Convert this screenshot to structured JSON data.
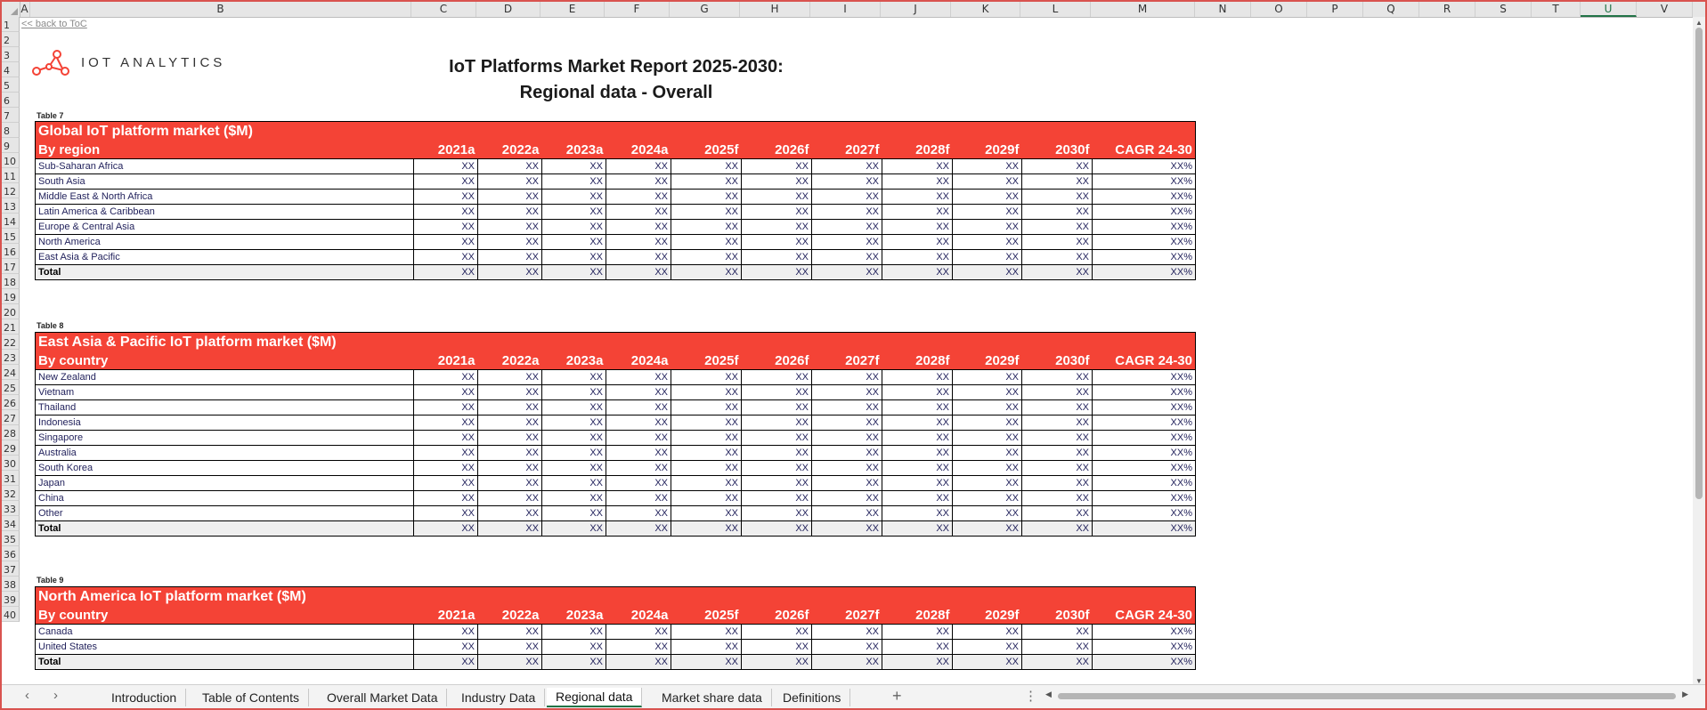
{
  "columns": [
    "A",
    "B",
    "C",
    "D",
    "E",
    "F",
    "G",
    "H",
    "I",
    "J",
    "K",
    "L",
    "M",
    "N",
    "O",
    "P",
    "Q",
    "R",
    "S",
    "T",
    "U",
    "V"
  ],
  "rows": [
    "1",
    "2",
    "3",
    "4",
    "5",
    "6",
    "7",
    "8",
    "9",
    "10",
    "11",
    "12",
    "13",
    "14",
    "15",
    "16",
    "17",
    "18",
    "19",
    "20",
    "21",
    "22",
    "23",
    "24",
    "25",
    "26",
    "27",
    "28",
    "29",
    "30",
    "31",
    "32",
    "33",
    "34",
    "35",
    "36",
    "37",
    "38",
    "39",
    "40"
  ],
  "back_link": "<< back to ToC",
  "logo_text": "IOT ANALYTICS",
  "title_line1": "IoT Platforms Market Report 2025-2030:",
  "title_line2": "Regional data - Overall",
  "year_headers": [
    "2021a",
    "2022a",
    "2023a",
    "2024a",
    "2025f",
    "2026f",
    "2027f",
    "2028f",
    "2029f",
    "2030f",
    "CAGR 24-30"
  ],
  "placeholder": "XX",
  "placeholder_pct": "XX%",
  "tables": [
    {
      "label": "Table 7",
      "title": "Global IoT platform market ($M)",
      "subtitle": "By region",
      "rows": [
        "Sub-Saharan Africa",
        "South Asia",
        "Middle East & North Africa",
        "Latin America & Caribbean",
        "Europe & Central Asia",
        "North America",
        "East Asia & Pacific",
        "Total"
      ]
    },
    {
      "label": "Table 8",
      "title": "East Asia & Pacific IoT platform market ($M)",
      "subtitle": "By country",
      "rows": [
        "New Zealand",
        "Vietnam",
        "Thailand",
        "Indonesia",
        "Singapore",
        "Australia",
        "South Korea",
        "Japan",
        "China",
        "Other",
        "Total"
      ]
    },
    {
      "label": "Table 9",
      "title": "North America IoT platform market ($M)",
      "subtitle": "By country",
      "rows": [
        "Canada",
        "United States",
        "Total"
      ]
    }
  ],
  "sheet_tabs": [
    "Introduction",
    "Table of Contents",
    "Overall Market Data",
    "Industry Data",
    "Regional data",
    "Market share data",
    "Definitions"
  ],
  "active_tab": "Regional data",
  "colors": {
    "accent": "#f44336",
    "excel_green": "#217346",
    "frame": "#d9534f"
  }
}
